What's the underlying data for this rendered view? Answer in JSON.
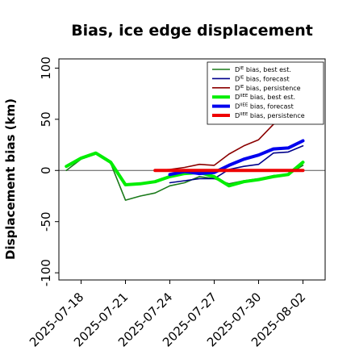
{
  "chart_data": {
    "type": "line",
    "title": "Bias, ice edge displacement",
    "ylabel": "Displacement bias (km)",
    "xlabel": "",
    "ylim": [
      -107,
      109
    ],
    "xlim": [
      "2025-07-16T12:00",
      "2025-08-03T12:00"
    ],
    "yticks": [
      -100,
      -50,
      0,
      50,
      100
    ],
    "xticks": [
      {
        "date": "2025-07-18",
        "label": "2025-07-18",
        "color": "#000000"
      },
      {
        "date": "2025-07-21",
        "label": "2025-07-21",
        "color": "#000000"
      },
      {
        "date": "2025-07-24",
        "label": "2025-07-24",
        "color": "#228b22"
      },
      {
        "date": "2025-07-27",
        "label": "2025-07-27",
        "color": "#000000"
      },
      {
        "date": "2025-07-30",
        "label": "2025-07-30",
        "color": "#000000"
      },
      {
        "date": "2025-08-02",
        "label": "2025-08-02",
        "color": "#000000"
      }
    ],
    "zero_line": 0,
    "grid": false,
    "legend_position": "top-right",
    "series": [
      {
        "name": "D^IE bias, best est.",
        "color": "#1a7a1a",
        "width": 1.6,
        "x": [
          "2025-07-17",
          "2025-07-18",
          "2025-07-19",
          "2025-07-20",
          "2025-07-21",
          "2025-07-22",
          "2025-07-23",
          "2025-07-24",
          "2025-07-25",
          "2025-07-26",
          "2025-07-27",
          "2025-07-28",
          "2025-07-29",
          "2025-07-30",
          "2025-07-31",
          "2025-08-01",
          "2025-08-02"
        ],
        "y": [
          0,
          11,
          16,
          7,
          -29,
          -25,
          -22,
          -15,
          -12,
          -6,
          -8,
          -13,
          -10,
          -8,
          -5,
          -4,
          5
        ]
      },
      {
        "name": "D^IE bias, forecast",
        "color": "#00008b",
        "width": 1.6,
        "x": [
          "2025-07-24",
          "2025-07-25",
          "2025-07-26",
          "2025-07-27",
          "2025-07-28",
          "2025-07-29",
          "2025-07-30",
          "2025-07-31",
          "2025-08-01",
          "2025-08-02"
        ],
        "y": [
          -12,
          -10,
          -8,
          -8,
          1,
          4,
          6,
          17,
          18,
          24
        ]
      },
      {
        "name": "D^IE bias, persistence",
        "color": "#8b0000",
        "width": 1.6,
        "x": [
          "2025-07-23",
          "2025-07-24",
          "2025-07-25",
          "2025-07-26",
          "2025-07-27",
          "2025-07-28",
          "2025-07-29",
          "2025-07-30",
          "2025-07-31",
          "2025-08-01"
        ],
        "y": [
          0,
          1,
          3,
          6,
          5,
          16,
          24,
          30,
          45,
          52
        ]
      },
      {
        "name": "D^IIEE bias, best est.",
        "color": "#00ee00",
        "width": 4,
        "x": [
          "2025-07-17",
          "2025-07-18",
          "2025-07-19",
          "2025-07-20",
          "2025-07-21",
          "2025-07-22",
          "2025-07-23",
          "2025-07-24",
          "2025-07-25",
          "2025-07-26",
          "2025-07-27",
          "2025-07-28",
          "2025-07-29",
          "2025-07-30",
          "2025-07-31",
          "2025-08-01",
          "2025-08-02"
        ],
        "y": [
          4,
          12,
          17,
          8,
          -14,
          -13,
          -11,
          -6,
          -3,
          -2,
          -6,
          -15,
          -11,
          -9,
          -6,
          -4,
          8
        ]
      },
      {
        "name": "D^IIEE bias, forecast",
        "color": "#0000ee",
        "width": 4,
        "x": [
          "2025-07-24",
          "2025-07-25",
          "2025-07-26",
          "2025-07-27",
          "2025-07-28",
          "2025-07-29",
          "2025-07-30",
          "2025-07-31",
          "2025-08-01",
          "2025-08-02"
        ],
        "y": [
          -4,
          -1,
          -3,
          -2,
          5,
          11,
          15,
          21,
          22,
          29
        ]
      },
      {
        "name": "D^IIEE bias, persistence",
        "color": "#ee0000",
        "width": 4,
        "x": [
          "2025-07-23",
          "2025-07-24",
          "2025-07-25",
          "2025-07-26",
          "2025-07-27",
          "2025-07-28",
          "2025-07-29",
          "2025-07-30",
          "2025-07-31",
          "2025-08-01",
          "2025-08-02"
        ],
        "y": [
          0,
          0,
          0,
          0,
          0,
          0,
          0,
          0,
          0,
          0,
          0
        ]
      }
    ],
    "legend": [
      {
        "base": "D",
        "sup": "IE",
        "text": " bias, best est."
      },
      {
        "base": "D",
        "sup": "IE",
        "text": " bias, forecast"
      },
      {
        "base": "D",
        "sup": "IE",
        "text": " bias, persistence"
      },
      {
        "base": "D",
        "sup": "IIEE",
        "text": " bias, best est."
      },
      {
        "base": "D",
        "sup": "IIEE",
        "text": " bias, forecast"
      },
      {
        "base": "D",
        "sup": "IIEE",
        "text": " bias, persistence"
      }
    ]
  }
}
